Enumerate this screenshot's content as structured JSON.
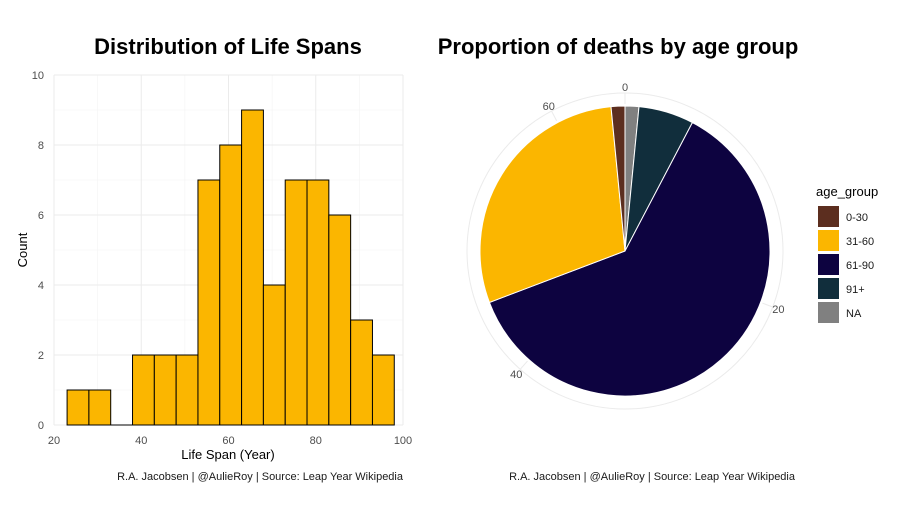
{
  "chart_data": [
    {
      "type": "bar",
      "title": "Distribution of Life Spans",
      "xlabel": "Life Span (Year)",
      "ylabel": "Count",
      "caption": "R.A. Jacobsen | @AulieRoy | Source: Leap Year Wikipedia",
      "xlim": [
        20,
        100
      ],
      "ylim": [
        0,
        10
      ],
      "x_ticks": [
        "20",
        "40",
        "60",
        "80",
        "100"
      ],
      "y_ticks": [
        "0",
        "2",
        "4",
        "6",
        "8",
        "10"
      ],
      "bin_width": 5,
      "bin_starts": [
        23,
        28,
        33,
        38,
        43,
        48,
        53,
        58,
        63,
        68,
        73,
        78,
        83,
        88,
        93
      ],
      "values": [
        1,
        1,
        0,
        2,
        2,
        2,
        7,
        8,
        9,
        4,
        7,
        7,
        6,
        3,
        2
      ],
      "bar_color": "#FBB600",
      "grid": true
    },
    {
      "type": "pie",
      "title": "Proportion of deaths by age group",
      "caption": "R.A. Jacobsen | @AulieRoy | Source: Leap Year Wikipedia",
      "legend_title": "age_group",
      "legend_position": "right",
      "radial_ticks": [
        "0",
        "20",
        "40",
        "60"
      ],
      "categories": [
        "0-30",
        "31-60",
        "61-90",
        "91+",
        "NA"
      ],
      "values": [
        1,
        19,
        40,
        4,
        1
      ],
      "colors": [
        "#5C2E1F",
        "#FBB600",
        "#0D0340",
        "#112E3C",
        "#808080"
      ],
      "slice_order": [
        "NA",
        "91+",
        "61-90",
        "31-60",
        "0-30"
      ]
    }
  ]
}
